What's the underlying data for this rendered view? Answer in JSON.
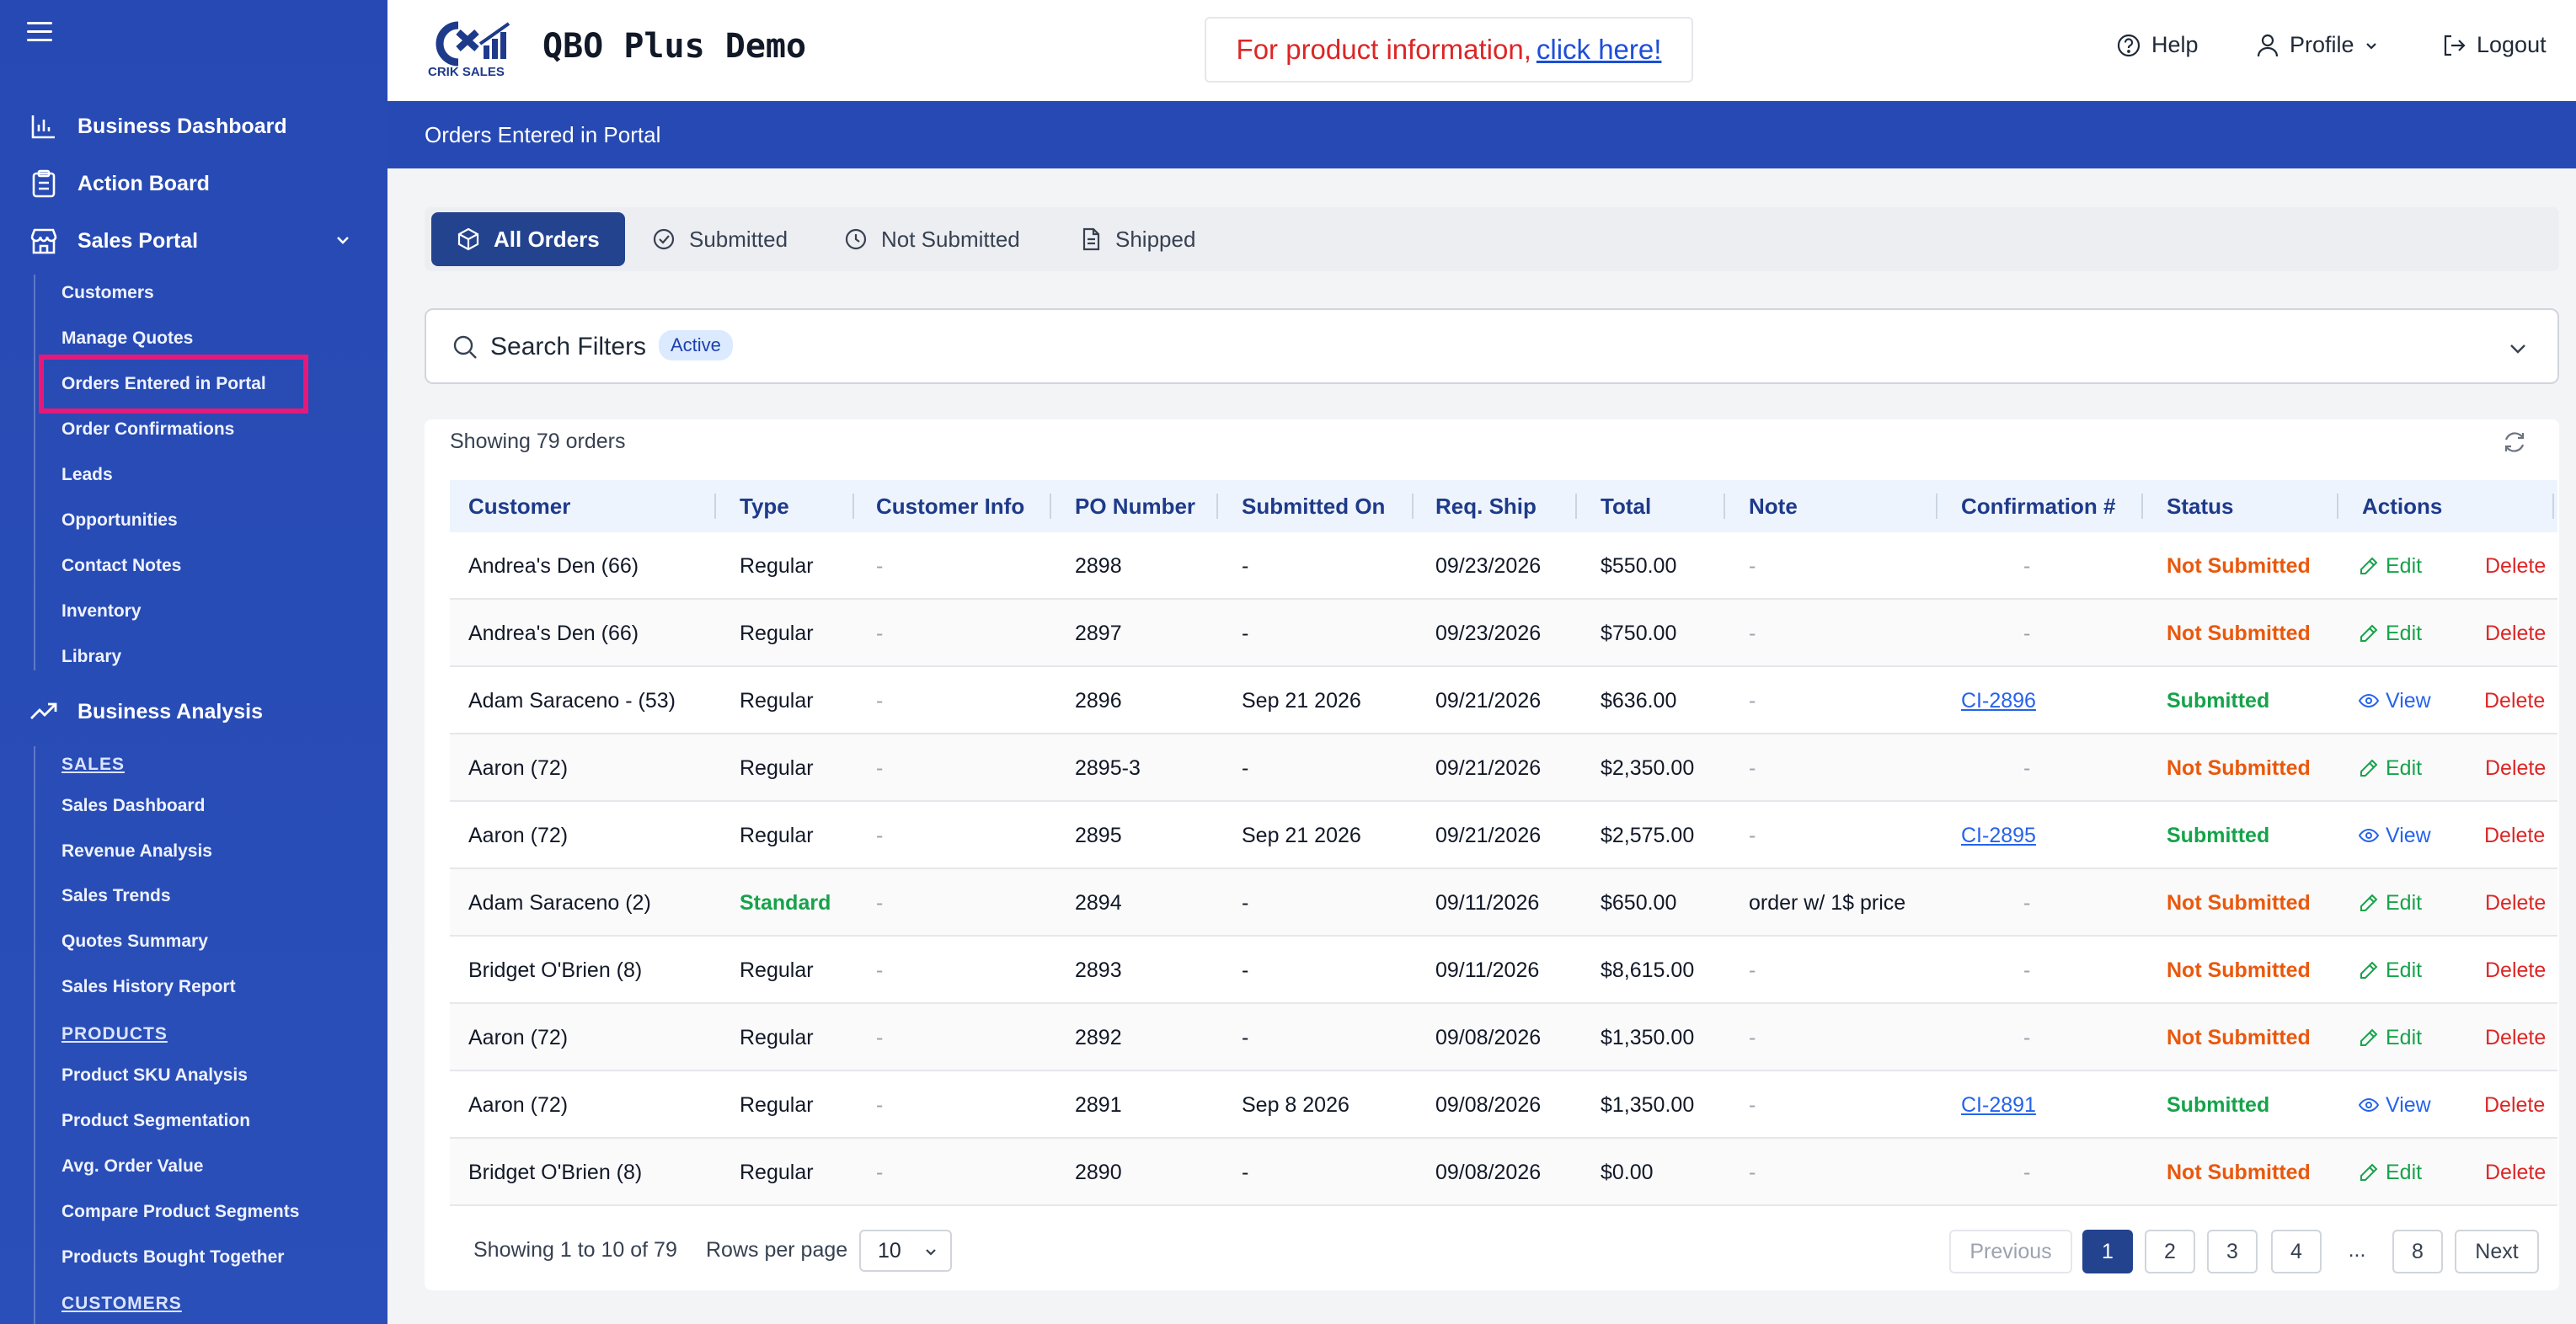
{
  "sidebar": {
    "main": [
      {
        "label": "Business Dashboard",
        "icon": "bar-chart-icon"
      },
      {
        "label": "Action Board",
        "icon": "clipboard-icon"
      },
      {
        "label": "Sales Portal",
        "icon": "store-icon"
      }
    ],
    "sales_portal_items": [
      "Customers",
      "Manage Quotes",
      "Orders Entered in Portal",
      "Order Confirmations",
      "Leads",
      "Opportunities",
      "Contact Notes",
      "Inventory",
      "Library"
    ],
    "business_analysis": "Business Analysis",
    "sections": {
      "sales": "SALES",
      "products": "PRODUCTS",
      "customers": "CUSTOMERS"
    },
    "sales_items": [
      "Sales Dashboard",
      "Revenue Analysis",
      "Sales Trends",
      "Quotes Summary",
      "Sales History Report"
    ],
    "product_items": [
      "Product SKU Analysis",
      "Product Segmentation",
      "Avg. Order Value",
      "Compare Product Segments",
      "Products Bought Together"
    ]
  },
  "header": {
    "logo_text": "CRIK SALES",
    "brand": "QBO Plus Demo",
    "promo_text": "For product information,",
    "promo_link": "click here!",
    "help": "Help",
    "profile": "Profile",
    "logout": "Logout"
  },
  "banner": "Orders Entered in Portal",
  "tabs": [
    "All Orders",
    "Submitted",
    "Not Submitted",
    "Shipped"
  ],
  "filters": {
    "label": "Search Filters",
    "badge": "Active"
  },
  "table": {
    "showing": "Showing 79 orders",
    "columns": [
      "Customer",
      "Type",
      "Customer Info",
      "PO Number",
      "Submitted On",
      "Req. Ship",
      "Total",
      "Note",
      "Confirmation #",
      "Status",
      "Actions"
    ],
    "rows": [
      {
        "customer": "Andrea's Den (66)",
        "type": "Regular",
        "info": "-",
        "po": "2898",
        "submitted": "-",
        "ship": "09/23/2026",
        "total": "$550.00",
        "note": "-",
        "conf": "-",
        "status": "Not Submitted",
        "action": "Edit",
        "delete": "Delete"
      },
      {
        "customer": "Andrea's Den (66)",
        "type": "Regular",
        "info": "-",
        "po": "2897",
        "submitted": "-",
        "ship": "09/23/2026",
        "total": "$750.00",
        "note": "-",
        "conf": "-",
        "status": "Not Submitted",
        "action": "Edit",
        "delete": "Delete"
      },
      {
        "customer": "Adam Saraceno - (53)",
        "type": "Regular",
        "info": "-",
        "po": "2896",
        "submitted": "Sep 21 2026",
        "ship": "09/21/2026",
        "total": "$636.00",
        "note": "-",
        "conf": "CI-2896",
        "status": "Submitted",
        "action": "View",
        "delete": "Delete"
      },
      {
        "customer": "Aaron (72)",
        "type": "Regular",
        "info": "-",
        "po": "2895-3",
        "submitted": "-",
        "ship": "09/21/2026",
        "total": "$2,350.00",
        "note": "-",
        "conf": "-",
        "status": "Not Submitted",
        "action": "Edit",
        "delete": "Delete"
      },
      {
        "customer": "Aaron (72)",
        "type": "Regular",
        "info": "-",
        "po": "2895",
        "submitted": "Sep 21 2026",
        "ship": "09/21/2026",
        "total": "$2,575.00",
        "note": "-",
        "conf": "CI-2895",
        "status": "Submitted",
        "action": "View",
        "delete": "Delete"
      },
      {
        "customer": "Adam Saraceno (2)",
        "type": "Standard",
        "info": "-",
        "po": "2894",
        "submitted": "-",
        "ship": "09/11/2026",
        "total": "$650.00",
        "note": "order w/ 1$ price",
        "conf": "-",
        "status": "Not Submitted",
        "action": "Edit",
        "delete": "Delete"
      },
      {
        "customer": "Bridget O'Brien (8)",
        "type": "Regular",
        "info": "-",
        "po": "2893",
        "submitted": "-",
        "ship": "09/11/2026",
        "total": "$8,615.00",
        "note": "-",
        "conf": "-",
        "status": "Not Submitted",
        "action": "Edit",
        "delete": "Delete"
      },
      {
        "customer": "Aaron (72)",
        "type": "Regular",
        "info": "-",
        "po": "2892",
        "submitted": "-",
        "ship": "09/08/2026",
        "total": "$1,350.00",
        "note": "-",
        "conf": "-",
        "status": "Not Submitted",
        "action": "Edit",
        "delete": "Delete"
      },
      {
        "customer": "Aaron (72)",
        "type": "Regular",
        "info": "-",
        "po": "2891",
        "submitted": "Sep 8 2026",
        "ship": "09/08/2026",
        "total": "$1,350.00",
        "note": "-",
        "conf": "CI-2891",
        "status": "Submitted",
        "action": "View",
        "delete": "Delete"
      },
      {
        "customer": "Bridget O'Brien (8)",
        "type": "Regular",
        "info": "-",
        "po": "2890",
        "submitted": "-",
        "ship": "09/08/2026",
        "total": "$0.00",
        "note": "-",
        "conf": "-",
        "status": "Not Submitted",
        "action": "Edit",
        "delete": "Delete"
      }
    ]
  },
  "pagination": {
    "showing": "Showing 1 to 10 of 79",
    "rows_label": "Rows per page",
    "rows_value": "10",
    "previous": "Previous",
    "pages": [
      "1",
      "2",
      "3",
      "4",
      "...",
      "8"
    ],
    "current": "1",
    "next": "Next"
  },
  "colors": {
    "sidebar": "#2749b3",
    "accent": "#24438f",
    "not_submitted": "#ea580c",
    "submitted": "#16a34a",
    "highlight": "#e6197a"
  }
}
